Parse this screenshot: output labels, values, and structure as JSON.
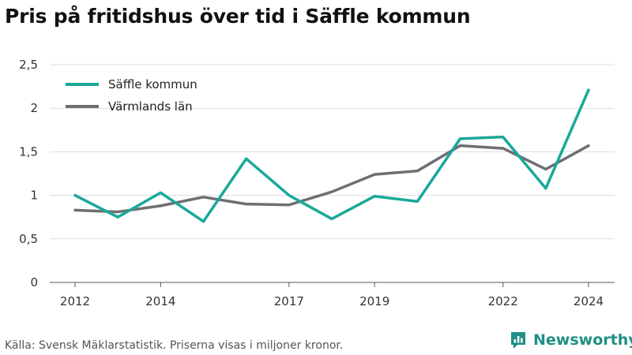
{
  "title": "Pris på fritidshus över tid i Säffle kommun",
  "source": "Källa: Svensk Mäklarstatistik. Priserna visas i miljoner kronor.",
  "brand": {
    "name": "Newsworthy",
    "icon": "newsworthy-logo-icon"
  },
  "chart_data": {
    "type": "line",
    "title": "Pris på fritidshus över tid i Säffle kommun",
    "xlabel": "",
    "ylabel": "",
    "x": [
      2012,
      2013,
      2014,
      2015,
      2016,
      2017,
      2018,
      2019,
      2020,
      2021,
      2022,
      2023,
      2024
    ],
    "x_ticks": [
      2012,
      2014,
      2017,
      2019,
      2022,
      2024
    ],
    "xlim": [
      2012,
      2024
    ],
    "y_ticks": [
      "0",
      "0,5",
      "1",
      "1,5",
      "2",
      "2,5"
    ],
    "ylim": [
      0,
      2.5
    ],
    "grid": "horizontal",
    "legend": "top-left",
    "series": [
      {
        "name": "Säffle kommun",
        "color": "#1aa89a",
        "values": [
          1.0,
          0.75,
          1.03,
          0.7,
          1.42,
          1.0,
          0.73,
          0.99,
          0.93,
          1.65,
          1.67,
          1.08,
          2.21
        ]
      },
      {
        "name": "Värmlands län",
        "color": "#6f6e73",
        "values": [
          0.83,
          0.81,
          0.88,
          0.98,
          0.9,
          0.89,
          1.04,
          1.24,
          1.28,
          1.57,
          1.54,
          1.3,
          1.57
        ]
      }
    ]
  }
}
